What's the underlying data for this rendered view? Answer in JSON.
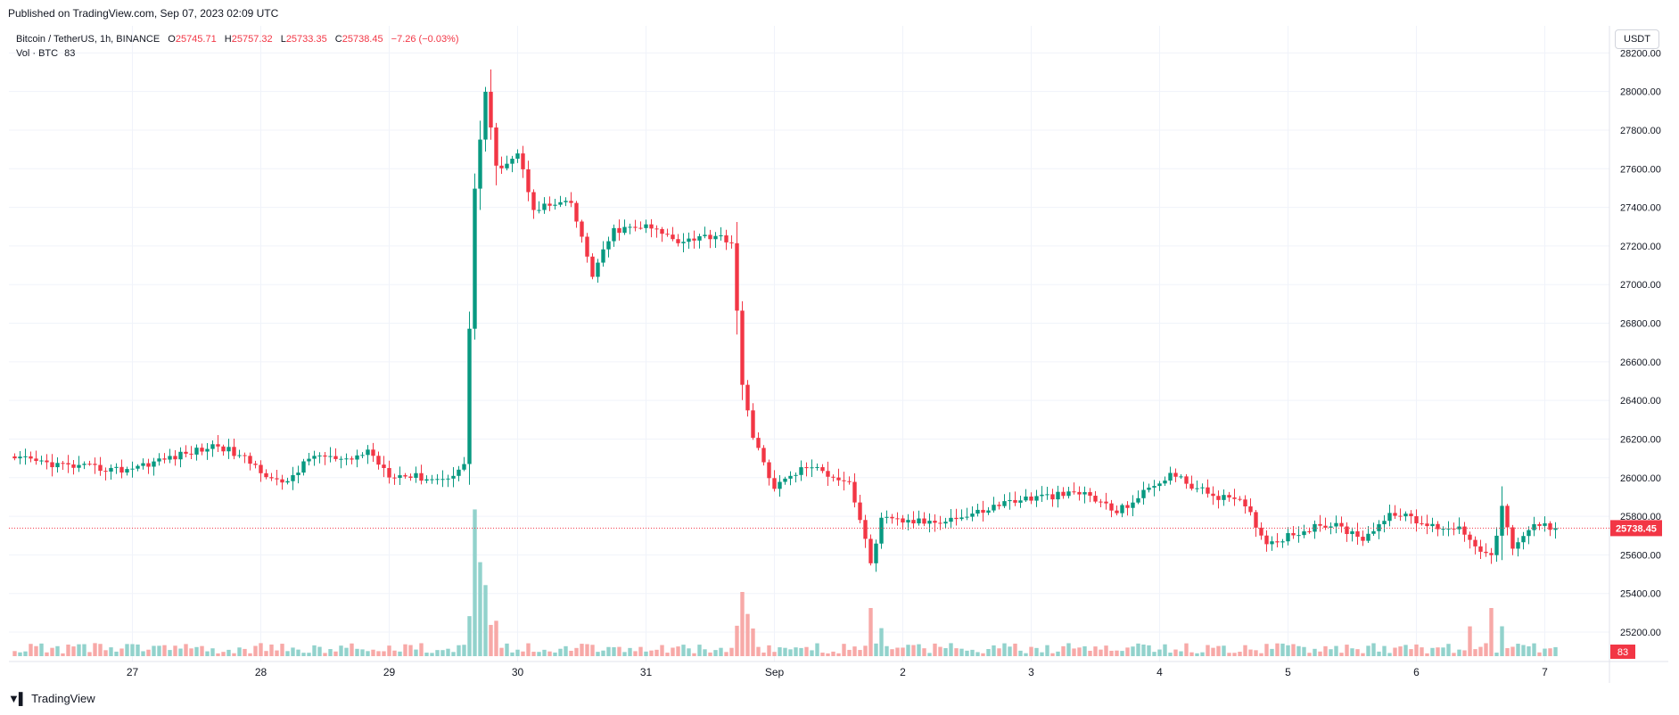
{
  "header": {
    "published": "Published on TradingView.com, Sep 07, 2023 02:09 UTC"
  },
  "legend": {
    "symbol": "Bitcoin / TetherUS, 1h, BINANCE",
    "o_label": "O",
    "o": "25745.71",
    "h_label": "H",
    "h": "25757.32",
    "l_label": "L",
    "l": "25733.35",
    "c_label": "C",
    "c": "25738.45",
    "change": "−7.26 (−0.03%)",
    "vol_label": "Vol · BTC",
    "vol_value": "83"
  },
  "currency_button": "USDT",
  "footer": {
    "brand": "TradingView",
    "logo": "tradingview-logo-icon"
  },
  "colors": {
    "up": "#089981",
    "down": "#f23645",
    "up_vol": "#92d2cc",
    "down_vol": "#f7a9a7",
    "grid": "#f0f3fa",
    "last_price": "#f23645"
  },
  "chart_data": {
    "type": "candlestick",
    "interval": "1h",
    "symbol": "BTCUSDT",
    "exchange": "BINANCE",
    "ylim": [
      25080,
      28340
    ],
    "y_ticks": [
      "28200.00",
      "28000.00",
      "27800.00",
      "27600.00",
      "27400.00",
      "27200.00",
      "27000.00",
      "26800.00",
      "26600.00",
      "26400.00",
      "26200.00",
      "26000.00",
      "25800.00",
      "25600.00",
      "25400.00",
      "25200.00"
    ],
    "x_ticks": [
      {
        "label": "27",
        "bar": 0
      },
      {
        "label": "28",
        "bar": 24
      },
      {
        "label": "29",
        "bar": 48
      },
      {
        "label": "30",
        "bar": 72
      },
      {
        "label": "31",
        "bar": 96
      },
      {
        "label": "Sep",
        "bar": 120
      },
      {
        "label": "2",
        "bar": 144
      },
      {
        "label": "3",
        "bar": 168
      },
      {
        "label": "4",
        "bar": 192
      },
      {
        "label": "5",
        "bar": 216
      },
      {
        "label": "6",
        "bar": 240
      },
      {
        "label": "7",
        "bar": 264
      }
    ],
    "bars_before_first_tick": 22,
    "grid": true,
    "last_price": "25738.45",
    "last_volume": "83",
    "anchor_closes": [
      [
        0,
        26100
      ],
      [
        10,
        26060
      ],
      [
        20,
        26040
      ],
      [
        30,
        26110
      ],
      [
        38,
        26170
      ],
      [
        44,
        26080
      ],
      [
        50,
        25960
      ],
      [
        56,
        26120
      ],
      [
        62,
        26080
      ],
      [
        66,
        26140
      ],
      [
        70,
        26020
      ],
      [
        80,
        25990
      ],
      [
        84,
        26060
      ],
      [
        86,
        27500
      ],
      [
        88,
        28000
      ],
      [
        90,
        27600
      ],
      [
        94,
        27680
      ],
      [
        97,
        27400
      ],
      [
        104,
        27420
      ],
      [
        108,
        27050
      ],
      [
        112,
        27280
      ],
      [
        118,
        27300
      ],
      [
        124,
        27230
      ],
      [
        132,
        27260
      ],
      [
        134,
        27200
      ],
      [
        136,
        26500
      ],
      [
        138,
        26200
      ],
      [
        142,
        25950
      ],
      [
        148,
        26060
      ],
      [
        156,
        25980
      ],
      [
        158,
        25780
      ],
      [
        160,
        25560
      ],
      [
        162,
        25780
      ],
      [
        170,
        25770
      ],
      [
        178,
        25800
      ],
      [
        186,
        25880
      ],
      [
        192,
        25900
      ],
      [
        200,
        25920
      ],
      [
        206,
        25820
      ],
      [
        212,
        25940
      ],
      [
        216,
        26020
      ],
      [
        222,
        25930
      ],
      [
        230,
        25860
      ],
      [
        234,
        25660
      ],
      [
        240,
        25720
      ],
      [
        246,
        25760
      ],
      [
        252,
        25690
      ],
      [
        258,
        25820
      ],
      [
        264,
        25750
      ],
      [
        270,
        25740
      ],
      [
        276,
        25580
      ],
      [
        278,
        25850
      ],
      [
        280,
        25620
      ],
      [
        284,
        25760
      ],
      [
        288,
        25738
      ]
    ],
    "volume_spikes": [
      {
        "bar": 86,
        "volume": 640
      },
      {
        "bar": 87,
        "volume": 410
      },
      {
        "bar": 88,
        "volume": 310
      },
      {
        "bar": 136,
        "volume": 280
      },
      {
        "bar": 160,
        "volume": 210
      },
      {
        "bar": 276,
        "volume": 210
      },
      {
        "bar": 272,
        "volume": 130
      }
    ],
    "volume_ylim": [
      0,
      700
    ]
  }
}
